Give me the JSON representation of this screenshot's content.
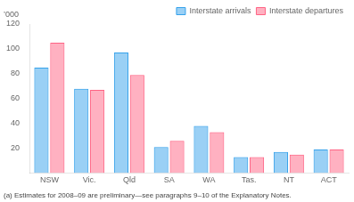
{
  "chart_data": {
    "type": "bar",
    "categories": [
      "NSW",
      "Vic.",
      "Qld",
      "SA",
      "WA",
      "Tas.",
      "NT",
      "ACT"
    ],
    "series": [
      {
        "name": "Interstate arrivals",
        "values": [
          85,
          68,
          97,
          21,
          38,
          13,
          17,
          19
        ]
      },
      {
        "name": "Interstate departures",
        "values": [
          105,
          67,
          79,
          26,
          33,
          13,
          15,
          19
        ]
      }
    ],
    "ylabel": "’000",
    "footnote": "(a) Estimates for 2008–09 are preliminary—see paragraphs 9–10 of the Explanatory Notes.",
    "ylim": [
      0,
      120
    ],
    "yticks": [
      {
        "value": 0,
        "label": ""
      },
      20,
      40,
      60,
      80,
      100,
      120
    ],
    "grid": false,
    "legend": "upper right"
  }
}
